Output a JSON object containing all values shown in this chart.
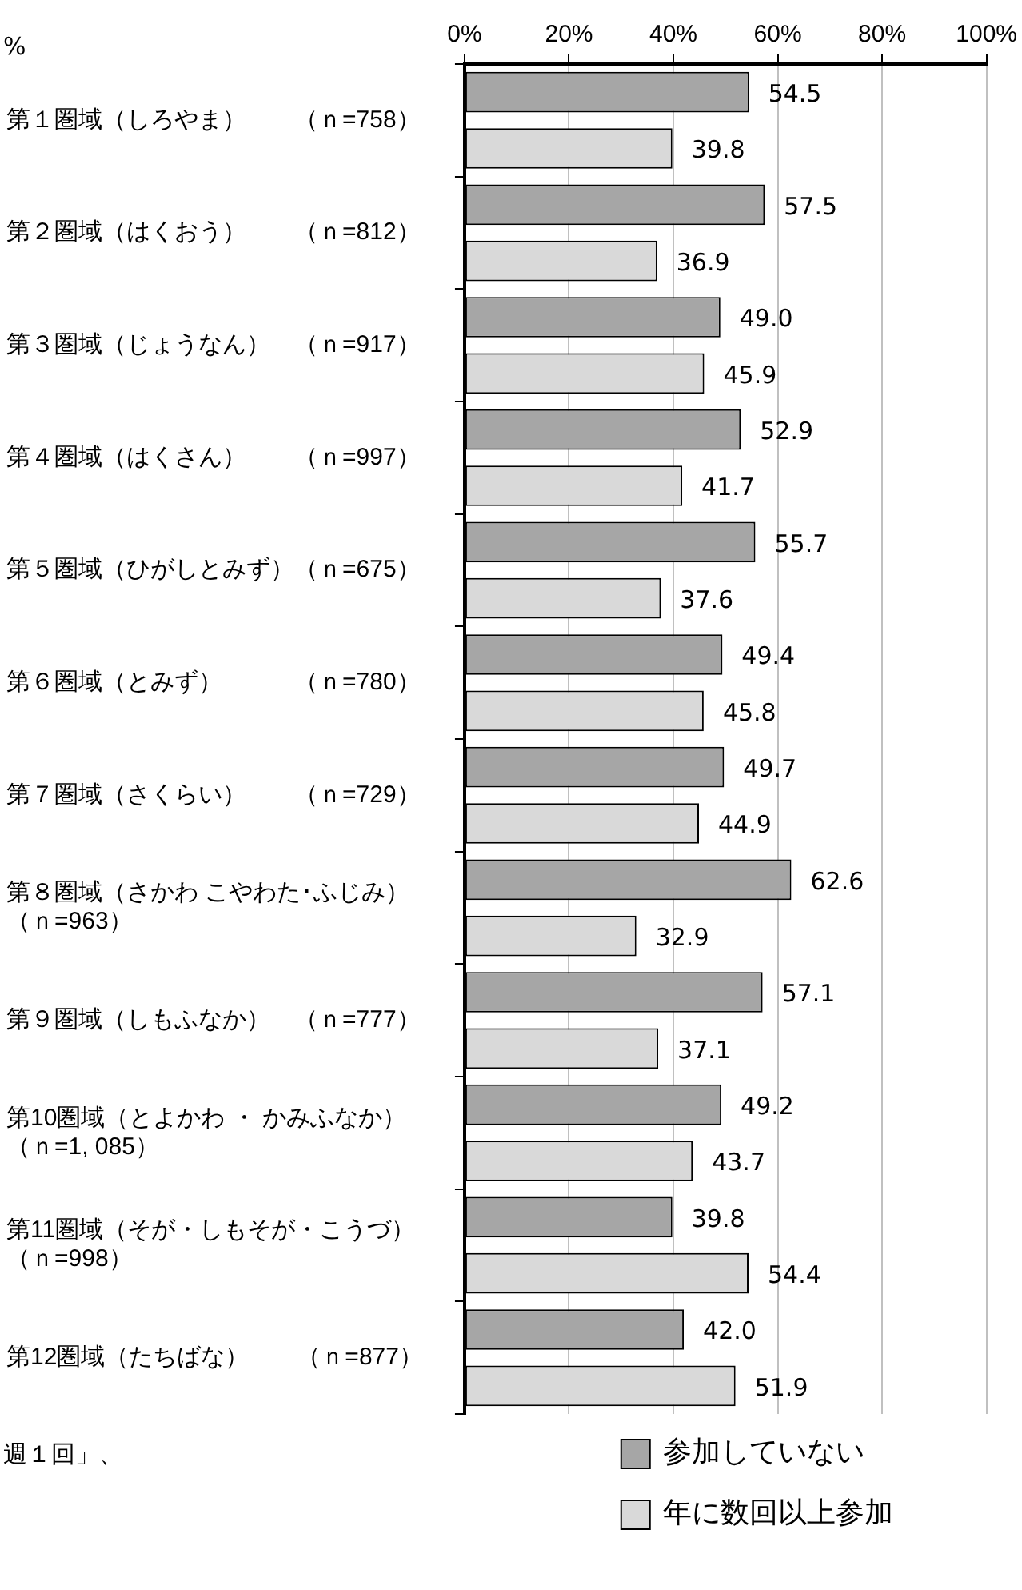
{
  "chart_data": {
    "type": "bar",
    "orientation": "horizontal",
    "categories": [
      "第１圏域（しろやま）　　（ｎ=758）",
      "第２圏域（はくおう）　　（ｎ=812）",
      "第３圏域（じょうなん）　（ｎ=917）",
      "第４圏域（はくさん）　　（ｎ=997）",
      "第５圏域（ひがしとみず）（ｎ=675）",
      "第６圏域（とみず）　　　（ｎ=780）",
      "第７圏域（さくらい）　　（ｎ=729）",
      "第８圏域（さかわ こやわた･ふじみ）（ｎ=963）",
      "第９圏域（しもふなか）　（ｎ=777）",
      "第10圏域（とよかわ ・ かみふなか）（ｎ=1, 085）",
      "第11圏域（そが・しもそが・こうづ）（ｎ=998）",
      "第12圏域（たちばな）　　（ｎ=877）"
    ],
    "series": [
      {
        "name": "参加していない",
        "color": "#a6a6a6",
        "values": [
          54.5,
          57.5,
          49.0,
          52.9,
          55.7,
          49.4,
          49.7,
          62.6,
          57.1,
          49.2,
          39.8,
          42.0
        ],
        "value_labels": [
          "54.5",
          "57.5",
          "49.0",
          "52.9",
          "55.7",
          "49.4",
          "49.7",
          "62.6",
          "57.1",
          "49.2",
          "39.8",
          "42.0"
        ]
      },
      {
        "name": "年に数回以上参加",
        "color": "#d9d9d9",
        "values": [
          39.8,
          36.9,
          45.9,
          41.7,
          37.6,
          45.8,
          44.9,
          32.9,
          37.1,
          43.7,
          54.4,
          51.9
        ],
        "value_labels": [
          "39.8",
          "36.9",
          "45.9",
          "41.7",
          "37.6",
          "45.8",
          "44.9",
          "32.9",
          "37.1",
          "43.7",
          "54.4",
          "51.9"
        ]
      }
    ],
    "xlim": [
      0,
      100
    ],
    "xticks": [
      {
        "value": 0,
        "label": "0%"
      },
      {
        "value": 20,
        "label": "20%"
      },
      {
        "value": 40,
        "label": "40%"
      },
      {
        "value": 60,
        "label": "60%"
      },
      {
        "value": 80,
        "label": "80%"
      },
      {
        "value": 100,
        "label": "100%"
      }
    ],
    "grid": "x",
    "legend": "bottom right",
    "annotations": [
      "%",
      "週１回」、"
    ]
  }
}
